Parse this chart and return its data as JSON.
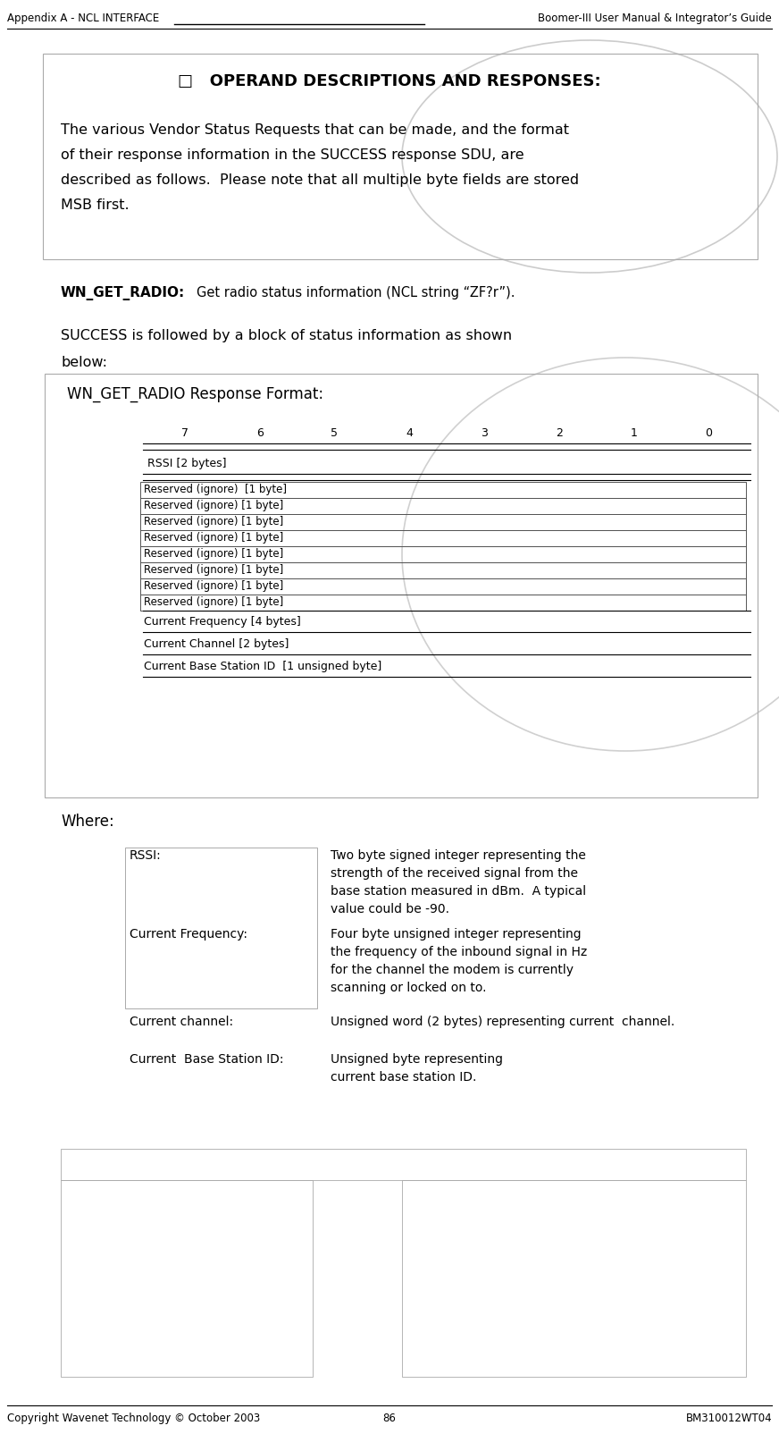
{
  "header_left": "Appendix A - NCL INTERFACE",
  "header_right": "Boomer-III User Manual & Integrator’s Guide",
  "footer_left": "Copyright Wavenet Technology © October 2003",
  "footer_center": "86",
  "footer_right": "BM310012WT04",
  "section_title": "□   OPERAND DESCRIPTIONS AND RESPONSES:",
  "body_text_lines": [
    "The various Vendor Status Requests that can be made, and the format",
    "of their response information in the SUCCESS response SDU, are",
    "described as follows.  Please note that all multiple byte fields are stored",
    "MSB first."
  ],
  "wn_label": "WN_GET_RADIO:",
  "wn_desc": "Get radio status information (NCL string “ZF?r”).",
  "success_line1": "SUCCESS is followed by a block of status information as shown",
  "success_line2": "below:",
  "format_title": "WN_GET_RADIO Response Format:",
  "bit_labels": [
    "7",
    "6",
    "5",
    "4",
    "3",
    "2",
    "1",
    "0"
  ],
  "rssi_label": "RSSI [2 bytes]",
  "reserved_rows": [
    "Reserved (ignore)  [1 byte]",
    "Reserved (ignore) [1 byte]",
    "Reserved (ignore) [1 byte]",
    "Reserved (ignore) [1 byte]",
    "Reserved (ignore) [1 byte]",
    "Reserved (ignore) [1 byte]",
    "Reserved (ignore) [1 byte]",
    "Reserved (ignore) [1 byte]"
  ],
  "freq_label": "Current Frequency [4 bytes]",
  "channel_label": "Current Channel [2 bytes]",
  "bsid_label": "Current Base Station ID  [1 unsigned byte]",
  "where_title": "Where:",
  "where_rows": [
    {
      "term": "RSSI:",
      "definition": "Two byte signed integer representing the\nstrength of the received signal from the\nbase station measured in dBm.  A typical\nvalue could be -90."
    },
    {
      "term": "Current Frequency:",
      "definition": "Four byte unsigned integer representing\nthe frequency of the inbound signal in Hz\nfor the channel the modem is currently\nscanning or locked on to."
    },
    {
      "term": "Current channel:",
      "definition": "Unsigned word (2 bytes) representing current  channel."
    },
    {
      "term": "Current  Base Station ID:",
      "definition": "Unsigned byte representing\ncurrent base station ID."
    }
  ],
  "bg_color": "#ffffff"
}
